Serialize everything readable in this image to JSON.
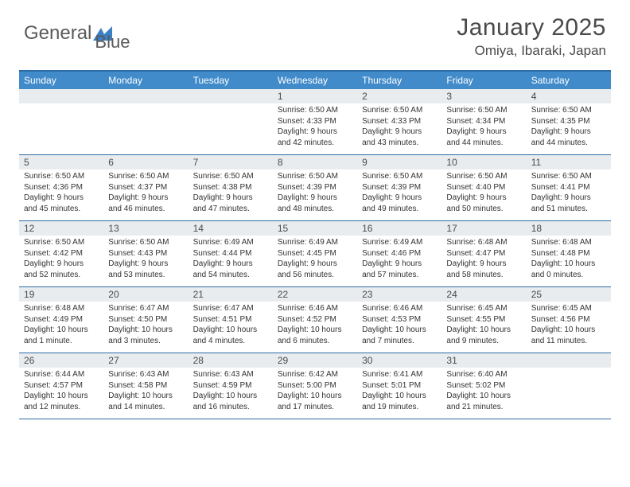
{
  "brand": {
    "name1": "General",
    "name2": "Blue"
  },
  "title": "January 2025",
  "location": "Omiya, Ibaraki, Japan",
  "colors": {
    "header_bg": "#418bca",
    "border": "#2e6da4",
    "daynum_bg": "#e9ecef",
    "text": "#333333"
  },
  "dayNames": [
    "Sunday",
    "Monday",
    "Tuesday",
    "Wednesday",
    "Thursday",
    "Friday",
    "Saturday"
  ],
  "weeks": [
    [
      {
        "n": "",
        "sr": "",
        "ss": "",
        "dl": ""
      },
      {
        "n": "",
        "sr": "",
        "ss": "",
        "dl": ""
      },
      {
        "n": "",
        "sr": "",
        "ss": "",
        "dl": ""
      },
      {
        "n": "1",
        "sr": "Sunrise: 6:50 AM",
        "ss": "Sunset: 4:33 PM",
        "dl": "Daylight: 9 hours and 42 minutes."
      },
      {
        "n": "2",
        "sr": "Sunrise: 6:50 AM",
        "ss": "Sunset: 4:33 PM",
        "dl": "Daylight: 9 hours and 43 minutes."
      },
      {
        "n": "3",
        "sr": "Sunrise: 6:50 AM",
        "ss": "Sunset: 4:34 PM",
        "dl": "Daylight: 9 hours and 44 minutes."
      },
      {
        "n": "4",
        "sr": "Sunrise: 6:50 AM",
        "ss": "Sunset: 4:35 PM",
        "dl": "Daylight: 9 hours and 44 minutes."
      }
    ],
    [
      {
        "n": "5",
        "sr": "Sunrise: 6:50 AM",
        "ss": "Sunset: 4:36 PM",
        "dl": "Daylight: 9 hours and 45 minutes."
      },
      {
        "n": "6",
        "sr": "Sunrise: 6:50 AM",
        "ss": "Sunset: 4:37 PM",
        "dl": "Daylight: 9 hours and 46 minutes."
      },
      {
        "n": "7",
        "sr": "Sunrise: 6:50 AM",
        "ss": "Sunset: 4:38 PM",
        "dl": "Daylight: 9 hours and 47 minutes."
      },
      {
        "n": "8",
        "sr": "Sunrise: 6:50 AM",
        "ss": "Sunset: 4:39 PM",
        "dl": "Daylight: 9 hours and 48 minutes."
      },
      {
        "n": "9",
        "sr": "Sunrise: 6:50 AM",
        "ss": "Sunset: 4:39 PM",
        "dl": "Daylight: 9 hours and 49 minutes."
      },
      {
        "n": "10",
        "sr": "Sunrise: 6:50 AM",
        "ss": "Sunset: 4:40 PM",
        "dl": "Daylight: 9 hours and 50 minutes."
      },
      {
        "n": "11",
        "sr": "Sunrise: 6:50 AM",
        "ss": "Sunset: 4:41 PM",
        "dl": "Daylight: 9 hours and 51 minutes."
      }
    ],
    [
      {
        "n": "12",
        "sr": "Sunrise: 6:50 AM",
        "ss": "Sunset: 4:42 PM",
        "dl": "Daylight: 9 hours and 52 minutes."
      },
      {
        "n": "13",
        "sr": "Sunrise: 6:50 AM",
        "ss": "Sunset: 4:43 PM",
        "dl": "Daylight: 9 hours and 53 minutes."
      },
      {
        "n": "14",
        "sr": "Sunrise: 6:49 AM",
        "ss": "Sunset: 4:44 PM",
        "dl": "Daylight: 9 hours and 54 minutes."
      },
      {
        "n": "15",
        "sr": "Sunrise: 6:49 AM",
        "ss": "Sunset: 4:45 PM",
        "dl": "Daylight: 9 hours and 56 minutes."
      },
      {
        "n": "16",
        "sr": "Sunrise: 6:49 AM",
        "ss": "Sunset: 4:46 PM",
        "dl": "Daylight: 9 hours and 57 minutes."
      },
      {
        "n": "17",
        "sr": "Sunrise: 6:48 AM",
        "ss": "Sunset: 4:47 PM",
        "dl": "Daylight: 9 hours and 58 minutes."
      },
      {
        "n": "18",
        "sr": "Sunrise: 6:48 AM",
        "ss": "Sunset: 4:48 PM",
        "dl": "Daylight: 10 hours and 0 minutes."
      }
    ],
    [
      {
        "n": "19",
        "sr": "Sunrise: 6:48 AM",
        "ss": "Sunset: 4:49 PM",
        "dl": "Daylight: 10 hours and 1 minute."
      },
      {
        "n": "20",
        "sr": "Sunrise: 6:47 AM",
        "ss": "Sunset: 4:50 PM",
        "dl": "Daylight: 10 hours and 3 minutes."
      },
      {
        "n": "21",
        "sr": "Sunrise: 6:47 AM",
        "ss": "Sunset: 4:51 PM",
        "dl": "Daylight: 10 hours and 4 minutes."
      },
      {
        "n": "22",
        "sr": "Sunrise: 6:46 AM",
        "ss": "Sunset: 4:52 PM",
        "dl": "Daylight: 10 hours and 6 minutes."
      },
      {
        "n": "23",
        "sr": "Sunrise: 6:46 AM",
        "ss": "Sunset: 4:53 PM",
        "dl": "Daylight: 10 hours and 7 minutes."
      },
      {
        "n": "24",
        "sr": "Sunrise: 6:45 AM",
        "ss": "Sunset: 4:55 PM",
        "dl": "Daylight: 10 hours and 9 minutes."
      },
      {
        "n": "25",
        "sr": "Sunrise: 6:45 AM",
        "ss": "Sunset: 4:56 PM",
        "dl": "Daylight: 10 hours and 11 minutes."
      }
    ],
    [
      {
        "n": "26",
        "sr": "Sunrise: 6:44 AM",
        "ss": "Sunset: 4:57 PM",
        "dl": "Daylight: 10 hours and 12 minutes."
      },
      {
        "n": "27",
        "sr": "Sunrise: 6:43 AM",
        "ss": "Sunset: 4:58 PM",
        "dl": "Daylight: 10 hours and 14 minutes."
      },
      {
        "n": "28",
        "sr": "Sunrise: 6:43 AM",
        "ss": "Sunset: 4:59 PM",
        "dl": "Daylight: 10 hours and 16 minutes."
      },
      {
        "n": "29",
        "sr": "Sunrise: 6:42 AM",
        "ss": "Sunset: 5:00 PM",
        "dl": "Daylight: 10 hours and 17 minutes."
      },
      {
        "n": "30",
        "sr": "Sunrise: 6:41 AM",
        "ss": "Sunset: 5:01 PM",
        "dl": "Daylight: 10 hours and 19 minutes."
      },
      {
        "n": "31",
        "sr": "Sunrise: 6:40 AM",
        "ss": "Sunset: 5:02 PM",
        "dl": "Daylight: 10 hours and 21 minutes."
      },
      {
        "n": "",
        "sr": "",
        "ss": "",
        "dl": ""
      }
    ]
  ]
}
